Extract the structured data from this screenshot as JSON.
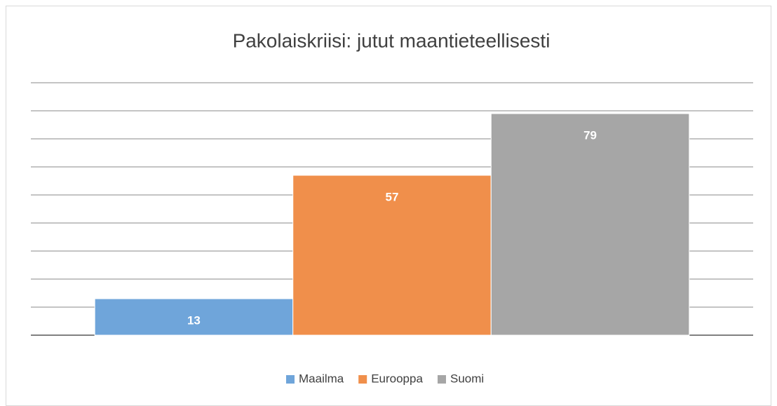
{
  "chart_data": {
    "type": "bar",
    "title": "Pakolaiskriisi: jutut maantieteellisesti",
    "categories": [
      null
    ],
    "series": [
      {
        "name": "Maailma",
        "color": "#6fa5da",
        "values": [
          13
        ]
      },
      {
        "name": "Eurooppa",
        "color": "#f08f4b",
        "values": [
          57
        ]
      },
      {
        "name": "Suomi",
        "color": "#a6a6a6",
        "values": [
          79
        ]
      }
    ],
    "ylim": [
      0,
      90
    ],
    "yticks": [
      0,
      10,
      20,
      30,
      40,
      50,
      60,
      70,
      80,
      90
    ],
    "show_tick_labels": false,
    "grid": true,
    "legend": "bottom"
  }
}
